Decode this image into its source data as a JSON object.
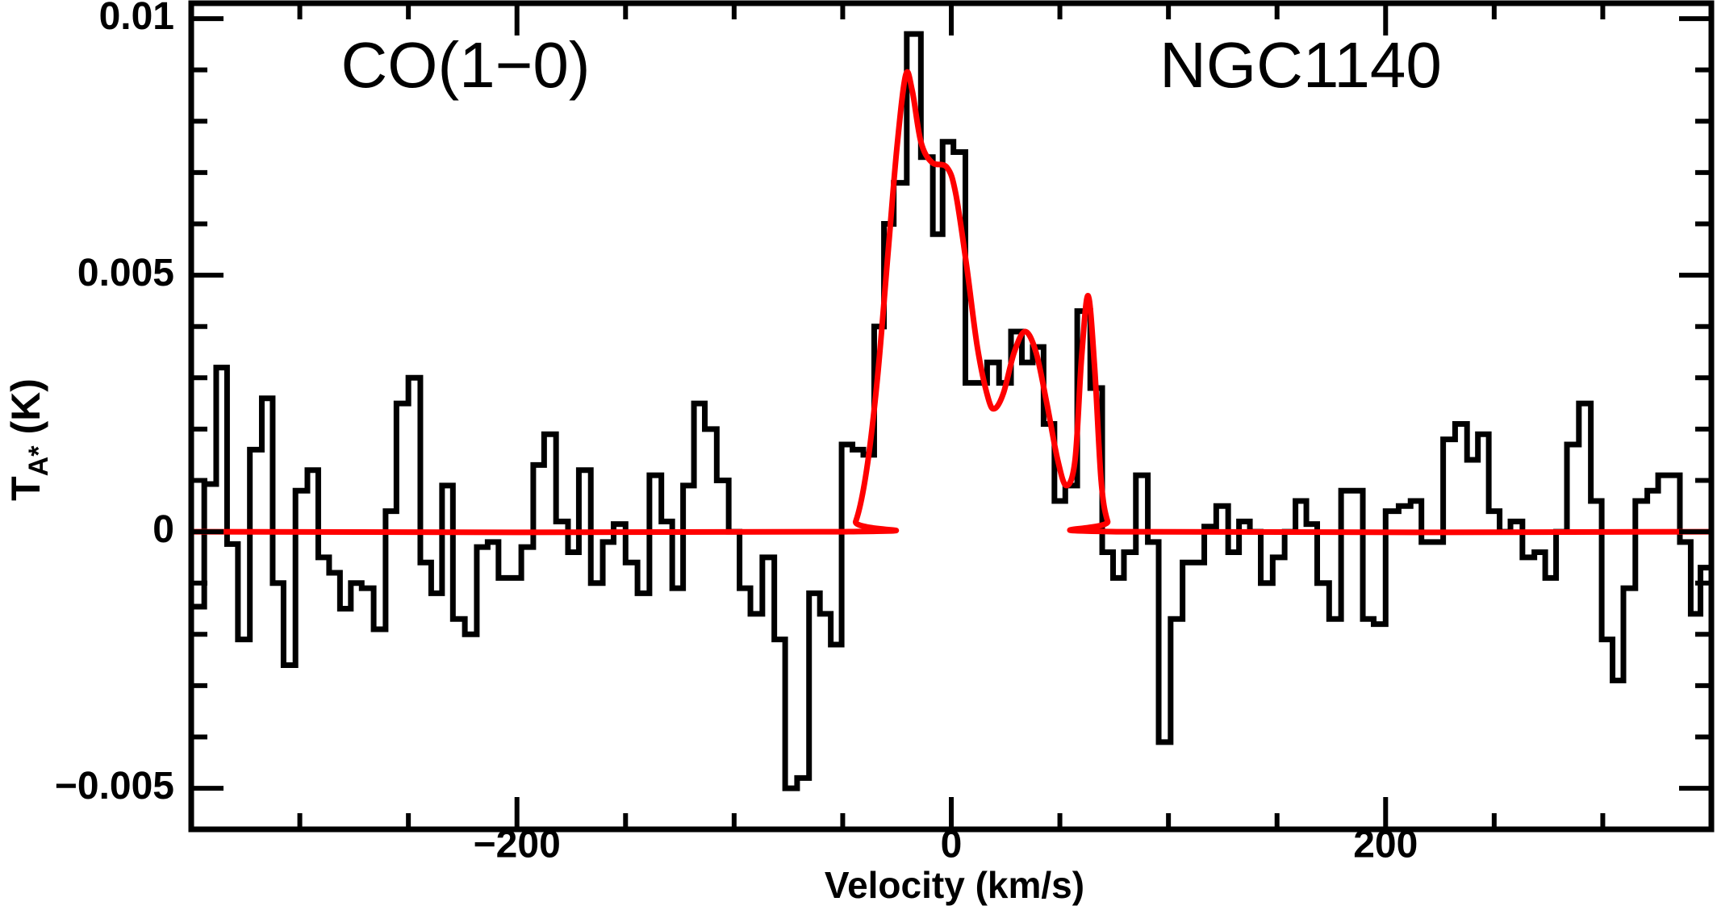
{
  "chart_data": {
    "type": "step",
    "annotations": [
      "CO(1−0)",
      "NGC1140"
    ],
    "xlabel": "Velocity (km/s)",
    "ylabel": {
      "symbol": "T",
      "subscript": "A*",
      "unit": "(K)"
    },
    "xlim": [
      -350,
      350
    ],
    "ylim": [
      -0.0058,
      0.0103
    ],
    "xticks": [
      {
        "value": -200,
        "label": "−200"
      },
      0,
      200
    ],
    "xminorticks": [
      -300,
      -250,
      -150,
      -100,
      -50,
      50,
      100,
      150,
      250,
      300
    ],
    "yticks": [
      {
        "value": -0.005,
        "label": "−0.005"
      },
      0,
      0.005,
      0.01
    ],
    "yminorticks": [
      -0.004,
      -0.003,
      -0.002,
      -0.001,
      0.001,
      0.002,
      0.003,
      0.004,
      0.006,
      0.007,
      0.008,
      0.009
    ],
    "series": [
      {
        "color": "#000000",
        "x": [
          -347,
          -341,
          -336,
          -331,
          -326,
          -320,
          -315,
          -310,
          -305,
          -299,
          -294,
          -289,
          -284,
          -279,
          -274,
          -269,
          -263,
          -258,
          -253,
          -247,
          -242,
          -237,
          -232,
          -227,
          -221,
          -216,
          -211,
          -206,
          -201,
          -195,
          -190,
          -185,
          -179,
          -174,
          -169,
          -163,
          -158,
          -153,
          -147,
          -142,
          -136,
          -131,
          -126,
          -121,
          -116,
          -111,
          -105,
          -100,
          -95,
          -90,
          -84,
          -79,
          -74,
          -68,
          -63,
          -58,
          -53,
          -48,
          -43,
          -38,
          -33,
          -29,
          -24,
          -17,
          -11,
          -6,
          -2,
          4,
          9,
          14,
          19,
          25,
          30,
          35,
          40,
          45,
          50,
          55,
          61,
          67,
          72,
          77,
          82,
          88,
          93,
          98,
          104,
          109,
          114,
          119,
          125,
          130,
          135,
          140,
          145,
          151,
          156,
          161,
          166,
          171,
          177,
          182,
          187,
          192,
          197,
          203,
          209,
          214,
          219,
          224,
          229,
          235,
          240,
          245,
          250,
          255,
          260,
          266,
          271,
          276,
          281,
          286,
          292,
          297,
          302,
          307,
          312,
          318,
          323,
          328,
          333,
          338,
          343,
          347
        ],
        "values": [
          -0.00146,
          0.00093,
          0.0032,
          -0.00024,
          -0.0021,
          0.0016,
          0.0026,
          -0.001,
          -0.0026,
          0.0008,
          0.0012,
          -0.0005,
          -0.0008,
          -0.0015,
          -0.001,
          -0.0011,
          -0.0019,
          0.0004,
          0.0025,
          0.003,
          -0.0006,
          -0.0012,
          0.0009,
          -0.0017,
          -0.002,
          -0.0003,
          -0.0002,
          -0.0009,
          -0.0009,
          -0.0003,
          0.0013,
          0.0019,
          0.0002,
          -0.0004,
          0.0012,
          -0.001,
          -0.0002,
          0.00015,
          -0.0006,
          -0.0012,
          0.0011,
          0.0002,
          -0.0011,
          0.0009,
          0.0025,
          0.002,
          0.001,
          0,
          -0.0011,
          -0.0016,
          -0.0005,
          -0.0021,
          -0.005,
          -0.0048,
          -0.0012,
          -0.0016,
          -0.0022,
          0.0017,
          0.0016,
          0.0015,
          0.004,
          0.006,
          0.0068,
          0.0097,
          0.0073,
          0.0058,
          0.0076,
          0.0074,
          0.0029,
          0.0029,
          0.0033,
          0.0029,
          0.0039,
          0.0033,
          0.0036,
          0.0021,
          0.0006,
          0.0009,
          0.0043,
          0.0028,
          -0.0004,
          -0.0009,
          -0.0004,
          0.0011,
          -0.0002,
          -0.0041,
          -0.0017,
          -0.0006,
          -0.0006,
          0.0001,
          0.0005,
          -0.0004,
          0.0002,
          0,
          -0.001,
          -0.0005,
          0,
          0.0006,
          0.00015,
          -0.001,
          -0.0017,
          0.0008,
          0.0008,
          -0.0017,
          -0.0018,
          0.0004,
          0.0005,
          0.0006,
          -0.0002,
          -0.0002,
          0.0018,
          0.0021,
          0.0014,
          0.0019,
          0.0004,
          0,
          0.0002,
          -0.0005,
          -0.0004,
          -0.0009,
          0,
          0.0017,
          0.0025,
          0.0006,
          -0.0021,
          -0.0029,
          -0.0011,
          0.0006,
          0.0008,
          0.0011,
          0.0011,
          -0.0002,
          -0.0016,
          -0.0007
        ]
      },
      {
        "color": "#ff0000",
        "style": "line",
        "x": [
          -350,
          -49,
          -44,
          -39,
          -34,
          -29,
          -25,
          -21,
          -18,
          -14,
          -9,
          -2,
          2,
          7,
          12,
          17,
          20,
          24,
          29,
          34,
          39,
          44,
          49,
          53,
          57,
          60,
          63,
          66,
          69,
          72,
          76,
          350
        ],
        "values": [
          0,
          0,
          0.0002,
          0.0012,
          0.003,
          0.0055,
          0.0075,
          0.0089,
          0.0086,
          0.0076,
          0.0072,
          0.0071,
          0.0066,
          0.0052,
          0.0036,
          0.0026,
          0.0024,
          0.0027,
          0.0035,
          0.0039,
          0.0035,
          0.0025,
          0.0014,
          0.0009,
          0.0014,
          0.0034,
          0.0046,
          0.0032,
          0.001,
          0.0002,
          0,
          0
        ]
      }
    ]
  }
}
